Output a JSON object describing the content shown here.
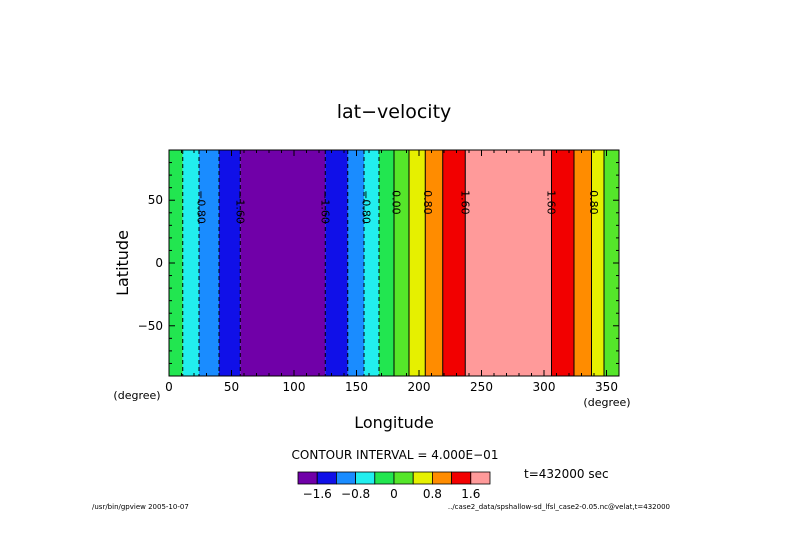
{
  "chart_data": {
    "type": "heatmap",
    "title": "lat−velocity",
    "xlabel": "Longitude",
    "ylabel": "Latitude",
    "x_unit": "(degree)",
    "y_unit": "(degree)",
    "xlim": [
      0,
      360
    ],
    "ylim": [
      -90,
      90
    ],
    "x_ticks": [
      0,
      50,
      100,
      150,
      200,
      250,
      300,
      350
    ],
    "x_tick_labels": [
      "0",
      "50",
      "100",
      "150",
      "200",
      "250",
      "300",
      "350"
    ],
    "y_ticks": [
      50,
      0,
      -50
    ],
    "y_tick_labels": [
      "50",
      "0",
      "−50"
    ],
    "bands": [
      {
        "x0": 0,
        "x1": 11,
        "color": "#22e650"
      },
      {
        "x0": 11,
        "x1": 24,
        "color": "#22eeee"
      },
      {
        "x0": 24,
        "x1": 40,
        "color": "#1a8cff"
      },
      {
        "x0": 40,
        "x1": 57,
        "color": "#1010e8"
      },
      {
        "x0": 57,
        "x1": 125,
        "color": "#7000a8"
      },
      {
        "x0": 125,
        "x1": 143,
        "color": "#1010e8"
      },
      {
        "x0": 143,
        "x1": 156,
        "color": "#1a8cff"
      },
      {
        "x0": 156,
        "x1": 168,
        "color": "#22eeee"
      },
      {
        "x0": 168,
        "x1": 180,
        "color": "#22e650"
      },
      {
        "x0": 180,
        "x1": 192,
        "color": "#55e62a"
      },
      {
        "x0": 192,
        "x1": 205,
        "color": "#e6f000"
      },
      {
        "x0": 205,
        "x1": 219,
        "color": "#ff8c00"
      },
      {
        "x0": 219,
        "x1": 237,
        "color": "#f20000"
      },
      {
        "x0": 237,
        "x1": 306,
        "color": "#ff9a9a"
      },
      {
        "x0": 306,
        "x1": 324,
        "color": "#f20000"
      },
      {
        "x0": 324,
        "x1": 338,
        "color": "#ff8c00"
      },
      {
        "x0": 338,
        "x1": 348,
        "color": "#e6f000"
      },
      {
        "x0": 348,
        "x1": 360,
        "color": "#55e62a"
      }
    ],
    "dashed_contours": [
      11,
      24,
      40,
      57,
      125,
      143,
      156,
      168
    ],
    "contour_labels": [
      {
        "x": 26,
        "text": "−0.80"
      },
      {
        "x": 57,
        "text": "−1.60"
      },
      {
        "x": 125,
        "text": "−1.60"
      },
      {
        "x": 158,
        "text": "−0.80"
      },
      {
        "x": 182,
        "text": "0.00"
      },
      {
        "x": 207,
        "text": "0.80"
      },
      {
        "x": 237,
        "text": "1.60"
      },
      {
        "x": 306,
        "text": "1.60"
      },
      {
        "x": 340,
        "text": "0.80"
      }
    ],
    "contour_interval": "CONTOUR INTERVAL = 4.000E−01",
    "colorbar": {
      "colors": [
        "#7000a8",
        "#1010e8",
        "#1a8cff",
        "#22eeee",
        "#22e650",
        "#55e62a",
        "#e6f000",
        "#ff8c00",
        "#f20000",
        "#ff9a9a"
      ],
      "boundaries": [
        -2.0,
        -1.6,
        -1.2,
        -0.8,
        -0.4,
        0,
        0.4,
        0.8,
        1.2,
        1.6,
        2.0
      ],
      "tick_values": [
        -1.6,
        -0.8,
        0,
        0.8,
        1.6
      ],
      "tick_labels": [
        "−1.6",
        "−0.8",
        "0",
        "0.8",
        "1.6"
      ]
    },
    "time_label": "t=432000 sec"
  },
  "footer": {
    "left": "/usr/bin/gpview  2005-10-07",
    "right": "../case2_data/spshallow-sd_lfsl_case2-0.05.nc@velat,t=432000"
  }
}
